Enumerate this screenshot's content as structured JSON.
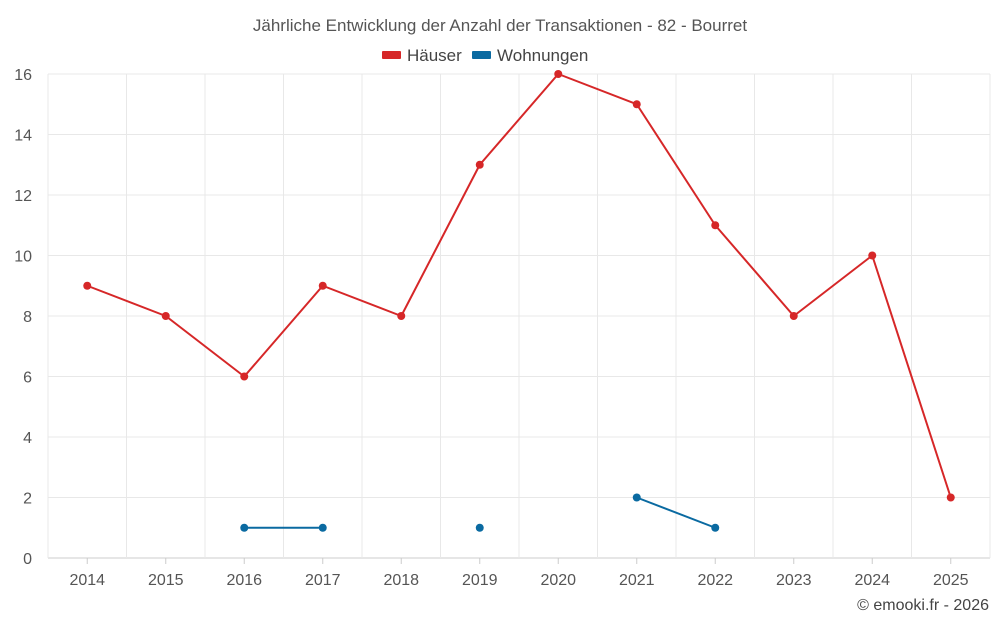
{
  "chart_data": {
    "type": "line",
    "title": "Jährliche Entwicklung der Anzahl der Transaktionen - 82 - Bourret",
    "categories": [
      "2014",
      "2015",
      "2016",
      "2017",
      "2018",
      "2019",
      "2020",
      "2021",
      "2022",
      "2023",
      "2024",
      "2025"
    ],
    "ylim": [
      0,
      16
    ],
    "yticks": [
      0,
      2,
      4,
      6,
      8,
      10,
      12,
      14,
      16
    ],
    "grid": true,
    "legend_position": "top-center",
    "series": [
      {
        "name": "Häuser",
        "color": "#d62728",
        "values": [
          9,
          8,
          6,
          9,
          8,
          13,
          16,
          15,
          11,
          8,
          10,
          2
        ]
      },
      {
        "name": "Wohnungen",
        "color": "#0a6aa1",
        "values": [
          null,
          null,
          1,
          1,
          null,
          1,
          null,
          2,
          1,
          null,
          null,
          null
        ]
      }
    ],
    "credit": "© emooki.fr - 2026"
  }
}
